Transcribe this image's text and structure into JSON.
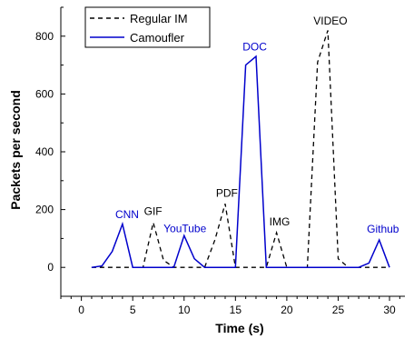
{
  "chart_data": {
    "type": "line",
    "title": "",
    "xlabel": "Time (s)",
    "ylabel": "Packets per second",
    "xlim": [
      -2,
      31.5
    ],
    "ylim": [
      -100,
      900
    ],
    "xticks": [
      0,
      5,
      10,
      15,
      20,
      25,
      30
    ],
    "yticks": [
      0,
      200,
      400,
      600,
      800
    ],
    "grid": false,
    "legend_position": "top-left",
    "series": [
      {
        "name": "Regular IM",
        "color": "#000000",
        "style": "dashed",
        "x": [
          1,
          2,
          3,
          4,
          5,
          6,
          7,
          8,
          9,
          10,
          11,
          12,
          13,
          14,
          15,
          16,
          17,
          18,
          19,
          20,
          21,
          22,
          23,
          24,
          25,
          26,
          27,
          28,
          29,
          30
        ],
        "y": [
          0,
          0,
          0,
          0,
          0,
          0,
          155,
          25,
          0,
          0,
          0,
          0,
          95,
          220,
          0,
          0,
          0,
          0,
          120,
          0,
          0,
          0,
          710,
          820,
          30,
          0,
          0,
          0,
          0,
          0
        ]
      },
      {
        "name": "Camoufler",
        "color": "#0000cc",
        "style": "solid",
        "x": [
          1,
          2,
          3,
          4,
          5,
          6,
          7,
          8,
          9,
          10,
          11,
          12,
          13,
          14,
          15,
          16,
          17,
          18,
          19,
          20,
          21,
          22,
          23,
          24,
          25,
          26,
          27,
          28,
          29,
          30
        ],
        "y": [
          0,
          5,
          55,
          150,
          0,
          0,
          0,
          0,
          0,
          110,
          30,
          0,
          0,
          0,
          0,
          700,
          730,
          0,
          0,
          0,
          0,
          0,
          0,
          0,
          0,
          0,
          0,
          15,
          95,
          0
        ]
      }
    ],
    "annotations": [
      {
        "text": "CNN",
        "x": 3.3,
        "y": 170,
        "color": "#0000cc"
      },
      {
        "text": "GIF",
        "x": 6.1,
        "y": 182,
        "color": "#000000"
      },
      {
        "text": "YouTube",
        "x": 8.0,
        "y": 122,
        "color": "#0000cc"
      },
      {
        "text": "PDF",
        "x": 13.1,
        "y": 245,
        "color": "#000000"
      },
      {
        "text": "DOC",
        "x": 15.7,
        "y": 750,
        "color": "#0000cc"
      },
      {
        "text": "IMG",
        "x": 18.3,
        "y": 145,
        "color": "#000000"
      },
      {
        "text": "VIDEO",
        "x": 22.6,
        "y": 840,
        "color": "#000000"
      },
      {
        "text": "Github",
        "x": 27.8,
        "y": 120,
        "color": "#0000cc"
      }
    ]
  }
}
